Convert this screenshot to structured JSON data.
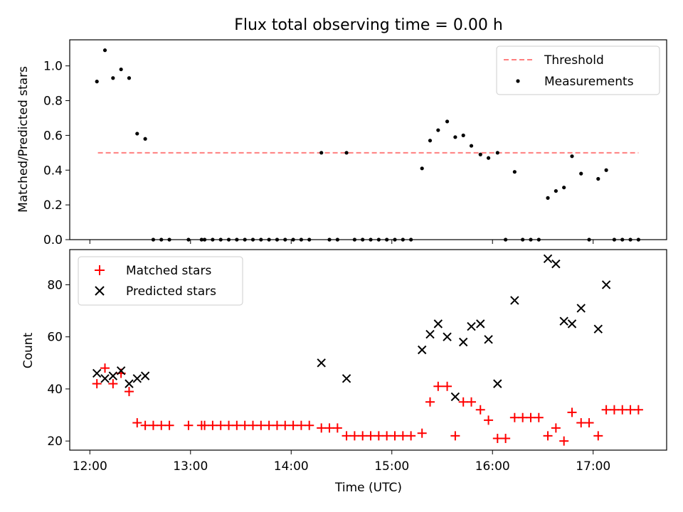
{
  "title": "Flux total observing time = 0.00 h",
  "colors": {
    "threshold": "#ff7f7f",
    "matched": "#ff0000",
    "predicted": "#000000",
    "measurements": "#000000"
  },
  "chart_data": [
    {
      "type": "line+scatter",
      "ylabel": "Matched/Predicted stars",
      "ylim": [
        0,
        1.15
      ],
      "yticks": [
        0.0,
        0.2,
        0.4,
        0.6,
        0.8,
        1.0
      ],
      "ytick_labels": [
        "0.0",
        "0.2",
        "0.4",
        "0.6",
        "0.8",
        "1.0"
      ],
      "xlim": [
        11.8,
        17.73
      ],
      "xticks": [
        12,
        13,
        14,
        15,
        16,
        17
      ],
      "legend_position": "top-right",
      "threshold": {
        "name": "Threshold",
        "value": 0.5,
        "x_range": [
          12.08,
          17.45
        ]
      },
      "measurements": {
        "name": "Measurements",
        "points": [
          [
            12.07,
            0.91
          ],
          [
            12.15,
            1.09
          ],
          [
            12.23,
            0.93
          ],
          [
            12.31,
            0.98
          ],
          [
            12.39,
            0.93
          ],
          [
            12.47,
            0.61
          ],
          [
            12.55,
            0.58
          ],
          [
            12.63,
            0
          ],
          [
            12.71,
            0
          ],
          [
            12.79,
            0
          ],
          [
            12.98,
            0
          ],
          [
            13.11,
            0
          ],
          [
            13.14,
            0
          ],
          [
            13.22,
            0
          ],
          [
            13.3,
            0
          ],
          [
            13.38,
            0
          ],
          [
            13.46,
            0
          ],
          [
            13.54,
            0
          ],
          [
            13.62,
            0
          ],
          [
            13.7,
            0
          ],
          [
            13.78,
            0
          ],
          [
            13.86,
            0
          ],
          [
            13.94,
            0
          ],
          [
            14.02,
            0
          ],
          [
            14.1,
            0
          ],
          [
            14.18,
            0
          ],
          [
            14.3,
            0.5
          ],
          [
            14.38,
            0
          ],
          [
            14.46,
            0
          ],
          [
            14.55,
            0.5
          ],
          [
            14.63,
            0
          ],
          [
            14.71,
            0
          ],
          [
            14.79,
            0
          ],
          [
            14.87,
            0
          ],
          [
            14.95,
            0
          ],
          [
            15.03,
            0
          ],
          [
            15.11,
            0
          ],
          [
            15.19,
            0
          ],
          [
            15.3,
            0.41
          ],
          [
            15.38,
            0.57
          ],
          [
            15.46,
            0.63
          ],
          [
            15.55,
            0.68
          ],
          [
            15.63,
            0.59
          ],
          [
            15.71,
            0.6
          ],
          [
            15.79,
            0.54
          ],
          [
            15.88,
            0.49
          ],
          [
            15.96,
            0.47
          ],
          [
            16.05,
            0.5
          ],
          [
            16.13,
            0
          ],
          [
            16.22,
            0.39
          ],
          [
            16.3,
            0
          ],
          [
            16.38,
            0
          ],
          [
            16.46,
            0
          ],
          [
            16.55,
            0.24
          ],
          [
            16.63,
            0.28
          ],
          [
            16.71,
            0.3
          ],
          [
            16.79,
            0.48
          ],
          [
            16.88,
            0.38
          ],
          [
            16.96,
            0
          ],
          [
            17.05,
            0.35
          ],
          [
            17.13,
            0.4
          ],
          [
            17.21,
            0
          ],
          [
            17.29,
            0
          ],
          [
            17.37,
            0
          ],
          [
            17.45,
            0
          ]
        ]
      }
    },
    {
      "type": "scatter",
      "xlabel": "Time (UTC)",
      "ylabel": "Count",
      "ylim": [
        16.5,
        93.5
      ],
      "yticks": [
        20,
        40,
        60,
        80
      ],
      "ytick_labels": [
        "20",
        "40",
        "60",
        "80"
      ],
      "xlim": [
        11.8,
        17.73
      ],
      "xticks": [
        12,
        13,
        14,
        15,
        16,
        17
      ],
      "xtick_labels": [
        "12:00",
        "13:00",
        "14:00",
        "15:00",
        "16:00",
        "17:00"
      ],
      "legend_position": "top-left",
      "series": [
        {
          "name": "Matched stars",
          "marker": "+",
          "points": [
            [
              12.07,
              42
            ],
            [
              12.15,
              48
            ],
            [
              12.23,
              42
            ],
            [
              12.31,
              46
            ],
            [
              12.39,
              39
            ],
            [
              12.47,
              27
            ],
            [
              12.55,
              26
            ],
            [
              12.63,
              26
            ],
            [
              12.71,
              26
            ],
            [
              12.79,
              26
            ],
            [
              12.98,
              26
            ],
            [
              13.11,
              26
            ],
            [
              13.14,
              26
            ],
            [
              13.22,
              26
            ],
            [
              13.3,
              26
            ],
            [
              13.38,
              26
            ],
            [
              13.46,
              26
            ],
            [
              13.54,
              26
            ],
            [
              13.62,
              26
            ],
            [
              13.7,
              26
            ],
            [
              13.78,
              26
            ],
            [
              13.86,
              26
            ],
            [
              13.94,
              26
            ],
            [
              14.02,
              26
            ],
            [
              14.1,
              26
            ],
            [
              14.18,
              26
            ],
            [
              14.3,
              25
            ],
            [
              14.38,
              25
            ],
            [
              14.46,
              25
            ],
            [
              14.55,
              22
            ],
            [
              14.63,
              22
            ],
            [
              14.71,
              22
            ],
            [
              14.79,
              22
            ],
            [
              14.87,
              22
            ],
            [
              14.95,
              22
            ],
            [
              15.03,
              22
            ],
            [
              15.11,
              22
            ],
            [
              15.19,
              22
            ],
            [
              15.3,
              23
            ],
            [
              15.38,
              35
            ],
            [
              15.46,
              41
            ],
            [
              15.55,
              41
            ],
            [
              15.63,
              22
            ],
            [
              15.71,
              35
            ],
            [
              15.79,
              35
            ],
            [
              15.88,
              32
            ],
            [
              15.96,
              28
            ],
            [
              16.05,
              21
            ],
            [
              16.13,
              21
            ],
            [
              16.22,
              29
            ],
            [
              16.3,
              29
            ],
            [
              16.38,
              29
            ],
            [
              16.46,
              29
            ],
            [
              16.55,
              22
            ],
            [
              16.63,
              25
            ],
            [
              16.71,
              20
            ],
            [
              16.79,
              31
            ],
            [
              16.88,
              27
            ],
            [
              16.96,
              27
            ],
            [
              17.05,
              22
            ],
            [
              17.13,
              32
            ],
            [
              17.21,
              32
            ],
            [
              17.29,
              32
            ],
            [
              17.37,
              32
            ],
            [
              17.45,
              32
            ]
          ]
        },
        {
          "name": "Predicted stars",
          "marker": "x",
          "points": [
            [
              12.07,
              46
            ],
            [
              12.15,
              44
            ],
            [
              12.23,
              45
            ],
            [
              12.31,
              47
            ],
            [
              12.39,
              42
            ],
            [
              12.47,
              44
            ],
            [
              12.55,
              45
            ],
            [
              14.3,
              50
            ],
            [
              14.55,
              44
            ],
            [
              15.3,
              55
            ],
            [
              15.38,
              61
            ],
            [
              15.46,
              65
            ],
            [
              15.55,
              60
            ],
            [
              15.63,
              37
            ],
            [
              15.71,
              58
            ],
            [
              15.79,
              64
            ],
            [
              15.88,
              65
            ],
            [
              15.96,
              59
            ],
            [
              16.05,
              42
            ],
            [
              16.22,
              74
            ],
            [
              16.55,
              90
            ],
            [
              16.63,
              88
            ],
            [
              16.71,
              66
            ],
            [
              16.79,
              65
            ],
            [
              16.88,
              71
            ],
            [
              17.05,
              63
            ],
            [
              17.13,
              80
            ]
          ]
        }
      ]
    }
  ]
}
